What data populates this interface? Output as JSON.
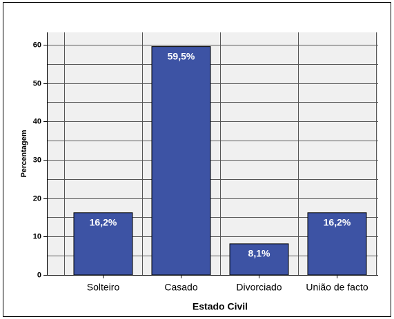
{
  "chart_data": {
    "type": "bar",
    "x_label": "Estado Civil",
    "y_label": "Percentagem",
    "categories": [
      "Solteiro",
      "Casado",
      "Divorciado",
      "União de facto"
    ],
    "values": [
      16.2,
      59.5,
      8.1,
      16.2
    ],
    "value_labels": [
      "16,2%",
      "59,5%",
      "8,1%",
      "16,2%"
    ],
    "color": "#3d53a4",
    "ylim": [
      0,
      63.2
    ],
    "yticks": [
      0,
      10,
      20,
      30,
      40,
      50,
      60
    ],
    "minor_yticks": [
      5,
      15,
      25,
      35,
      45,
      55
    ],
    "grid": true
  }
}
